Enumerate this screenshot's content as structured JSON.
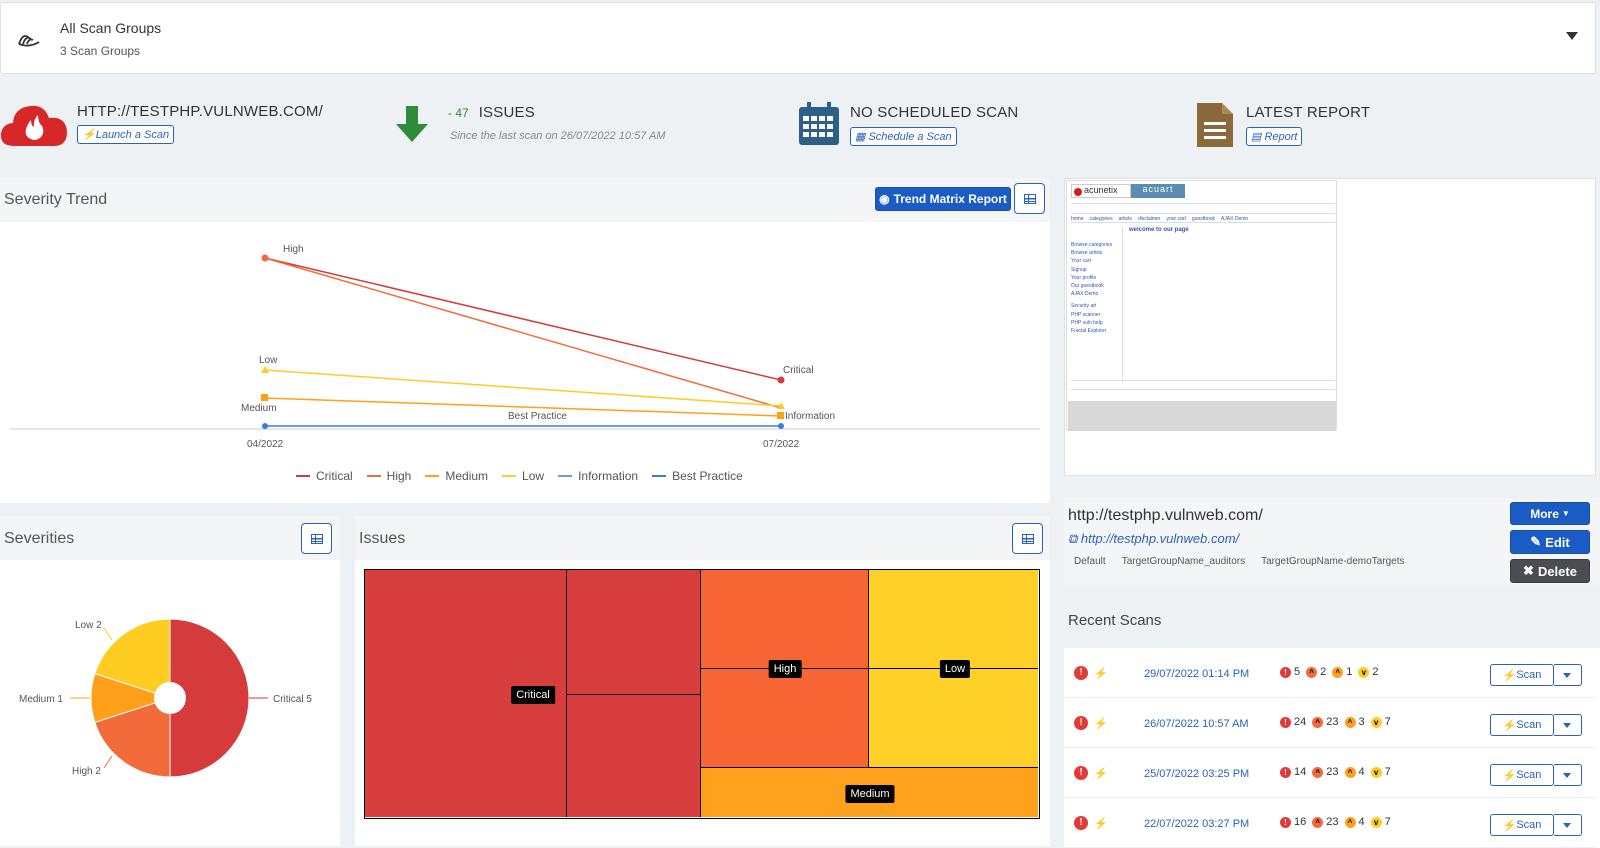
{
  "scan_groups": {
    "title": "All Scan Groups",
    "subtitle": "3 Scan Groups"
  },
  "target": {
    "title": "HTTP://TESTPHP.VULNWEB.COM/",
    "launch_btn": "Launch a Scan"
  },
  "issues_stat": {
    "delta": "- 47",
    "label": "ISSUES",
    "sub": "Since the last scan on 26/07/2022 10:57 AM"
  },
  "schedule_stat": {
    "title": "NO SCHEDULED SCAN",
    "btn": "Schedule a Scan"
  },
  "report_stat": {
    "title": "LATEST REPORT",
    "btn": "Report"
  },
  "severity_trend": {
    "title": "Severity Trend",
    "trend_btn": "Trend Matrix Report"
  },
  "chart_data": [
    {
      "type": "line",
      "title": "Severity Trend",
      "x": [
        "04/2022",
        "07/2022"
      ],
      "series": [
        {
          "name": "Critical",
          "color": "#d63b3b",
          "values": [
            null,
            null
          ]
        },
        {
          "name": "High",
          "color": "#f26b3a",
          "values": [
            null,
            null
          ]
        },
        {
          "name": "Medium",
          "color": "#ff9f1a",
          "values": [
            null,
            null
          ]
        },
        {
          "name": "Low",
          "color": "#ffcc22",
          "values": [
            null,
            null
          ]
        },
        {
          "name": "Information",
          "color": "#6a9ce8",
          "values": [
            null,
            null
          ]
        },
        {
          "name": "Best Practice",
          "color": "#3a7be0",
          "values": [
            null,
            null
          ]
        }
      ],
      "point_labels": [
        "High",
        "Critical",
        "Low",
        "Medium",
        "Best Practice",
        "Information"
      ],
      "legend": "bottom"
    },
    {
      "type": "pie",
      "title": "Severities",
      "slices": [
        {
          "label": "Critical",
          "value": 5,
          "color": "#d63b3b"
        },
        {
          "label": "High",
          "value": 2,
          "color": "#f26b3a"
        },
        {
          "label": "Medium",
          "value": 1,
          "color": "#ff9f1a"
        },
        {
          "label": "Low",
          "value": 2,
          "color": "#ffcc22"
        }
      ],
      "slice_labels": [
        "Critical 5",
        "High 2",
        "Medium 1",
        "Low 2"
      ]
    },
    {
      "type": "heatmap",
      "title": "Issues",
      "groups": [
        "Critical",
        "High",
        "Low",
        "Medium"
      ]
    }
  ],
  "severities": {
    "title": "Severities"
  },
  "issues": {
    "title": "Issues",
    "labels": [
      "Critical",
      "High",
      "Low",
      "Medium"
    ]
  },
  "target_info": {
    "url_title": "http://testphp.vulnweb.com/",
    "url_link": "http://testphp.vulnweb.com/",
    "tags": [
      "Default",
      "TargetGroupName_auditors",
      "TargetGroupName-demoTargets"
    ],
    "more_btn": "More",
    "edit_btn": "Edit",
    "delete_btn": "Delete"
  },
  "recent_scans": {
    "title": "Recent Scans",
    "scan_btn": "Scan",
    "rows": [
      {
        "date": "29/07/2022 01:14 PM",
        "critical": "5",
        "high": "2",
        "medium": "1",
        "low": "2"
      },
      {
        "date": "26/07/2022 10:57 AM",
        "critical": "24",
        "high": "23",
        "medium": "3",
        "low": "7"
      },
      {
        "date": "25/07/2022 03:25 PM",
        "critical": "14",
        "high": "23",
        "medium": "4",
        "low": "7"
      },
      {
        "date": "22/07/2022 03:27 PM",
        "critical": "16",
        "high": "23",
        "medium": "4",
        "low": "7"
      }
    ]
  },
  "thumbnail": {
    "logo1": "acunetix",
    "logo2": "acuart",
    "welcome": "welcome to our page",
    "nav": [
      "home",
      "categories",
      "artists",
      "disclaimer",
      "your cart",
      "guestbook",
      "AJAX Demo"
    ],
    "side": [
      "Browse categories",
      "Browse artists",
      "Your cart",
      "Signup",
      "Your profile",
      "Our guestbook",
      "AJAX Demo"
    ],
    "links": [
      "Security art",
      "PHP scanner",
      "PHP vuln help",
      "Fractal Explorer"
    ]
  }
}
